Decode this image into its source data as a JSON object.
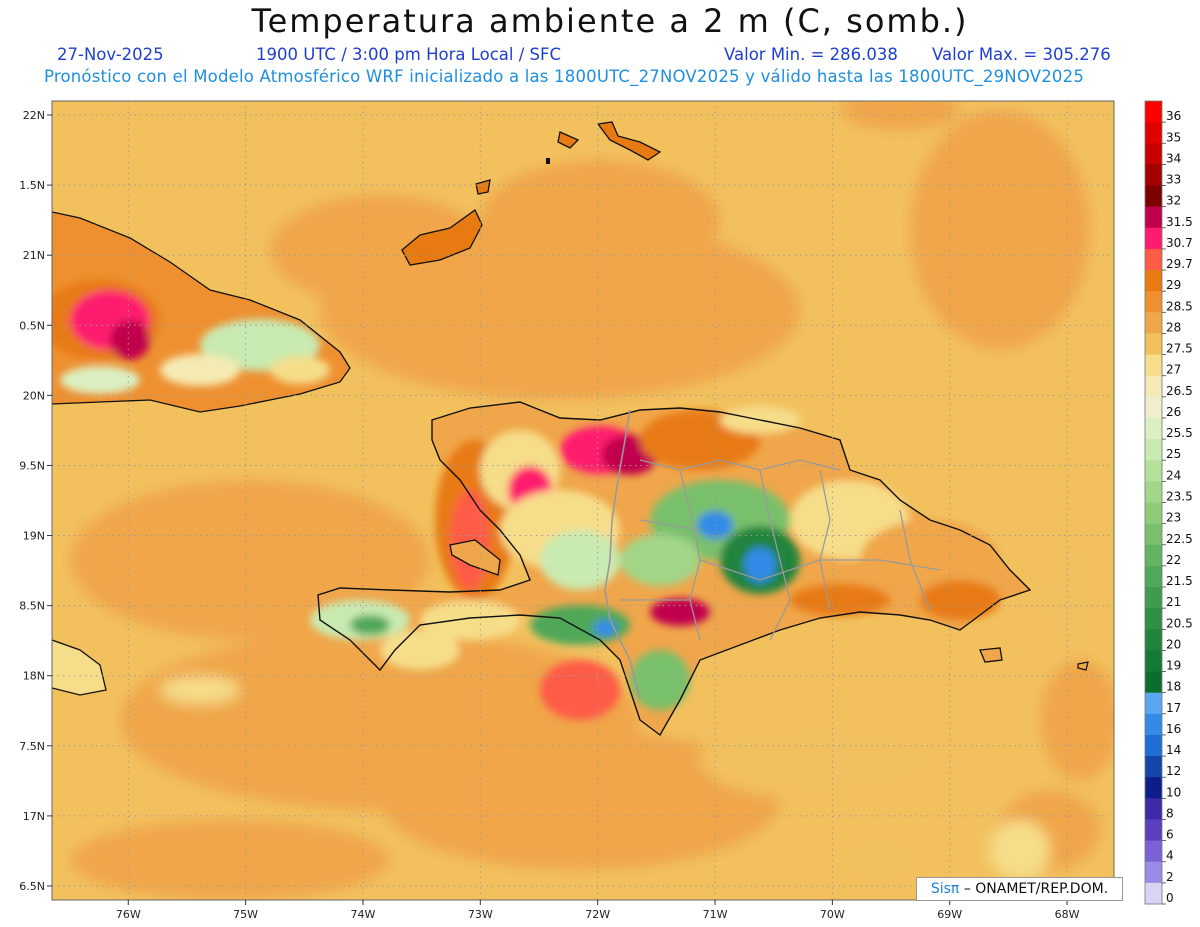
{
  "header": {
    "title": "Temperatura ambiente a 2 m (C, somb.)",
    "date": "27-Nov-2025",
    "time": "1900 UTC / 3:00 pm Hora Local / SFC",
    "min_value": "Valor Min. = 286.038",
    "max_value": "Valor Max. = 305.276",
    "forecast": "Pronóstico con el Modelo Atmosférico WRF inicializado a las 1800UTC_27NOV2025 y válido hasta las  1800UTC_29NOV2025"
  },
  "map": {
    "lat_labels": [
      "22N",
      "1.5N",
      "21N",
      "0.5N",
      "20N",
      "9.5N",
      "19N",
      "8.5N",
      "18N",
      "7.5N",
      "17N",
      "6.5N"
    ],
    "lat_values": [
      22,
      21.5,
      21,
      20.5,
      20,
      19.5,
      19,
      18.5,
      18,
      17.5,
      17,
      16.5
    ],
    "lon_labels": [
      "76W",
      "75W",
      "74W",
      "73W",
      "72W",
      "71W",
      "70W",
      "69W",
      "68W"
    ],
    "lon_values": [
      -76,
      -75,
      -74,
      -73,
      -72,
      -71,
      -70,
      -69,
      -68
    ],
    "lat_range": [
      16.4,
      22.1
    ],
    "lon_range": [
      -76.65,
      -67.6
    ],
    "grid": true,
    "background_color": "#f2c15e",
    "coast_color": "#111111",
    "border_color": "#999999"
  },
  "colorbar": {
    "labels": [
      "36",
      "35",
      "34",
      "33",
      "32",
      "31.5",
      "30.7",
      "29.7",
      "29",
      "28.5",
      "28",
      "27.5",
      "27",
      "26.5",
      "26",
      "25.5",
      "25",
      "24",
      "23.5",
      "23",
      "22.5",
      "22",
      "21.5",
      "21",
      "20.5",
      "20",
      "19",
      "18",
      "17",
      "16",
      "14",
      "12",
      "10",
      "8",
      "6",
      "4",
      "2",
      "0"
    ],
    "colors": [
      "#ff0000",
      "#e10000",
      "#c80000",
      "#a30000",
      "#7d0000",
      "#c1004d",
      "#ff1b6e",
      "#ff5c47",
      "#e87a12",
      "#ee9030",
      "#f0a64a",
      "#f2c15e",
      "#f6dd8a",
      "#f5eab4",
      "#efefcf",
      "#dbf0c2",
      "#c9eab0",
      "#b4e09a",
      "#a2d688",
      "#8fcc7a",
      "#79c06c",
      "#63b462",
      "#50a858",
      "#3f9c4e",
      "#2f9046",
      "#20843c",
      "#137a38",
      "#0b6e2f",
      "#5aa7f0",
      "#338be6",
      "#1f6ed6",
      "#1346a8",
      "#0d1e8a",
      "#3e2aa6",
      "#5b3fbd",
      "#7b62d6",
      "#9b8ae8",
      "#d8d6f4"
    ]
  },
  "credit": {
    "sis": "Sisπ",
    "text": "– ONAMET/REP.DOM."
  }
}
